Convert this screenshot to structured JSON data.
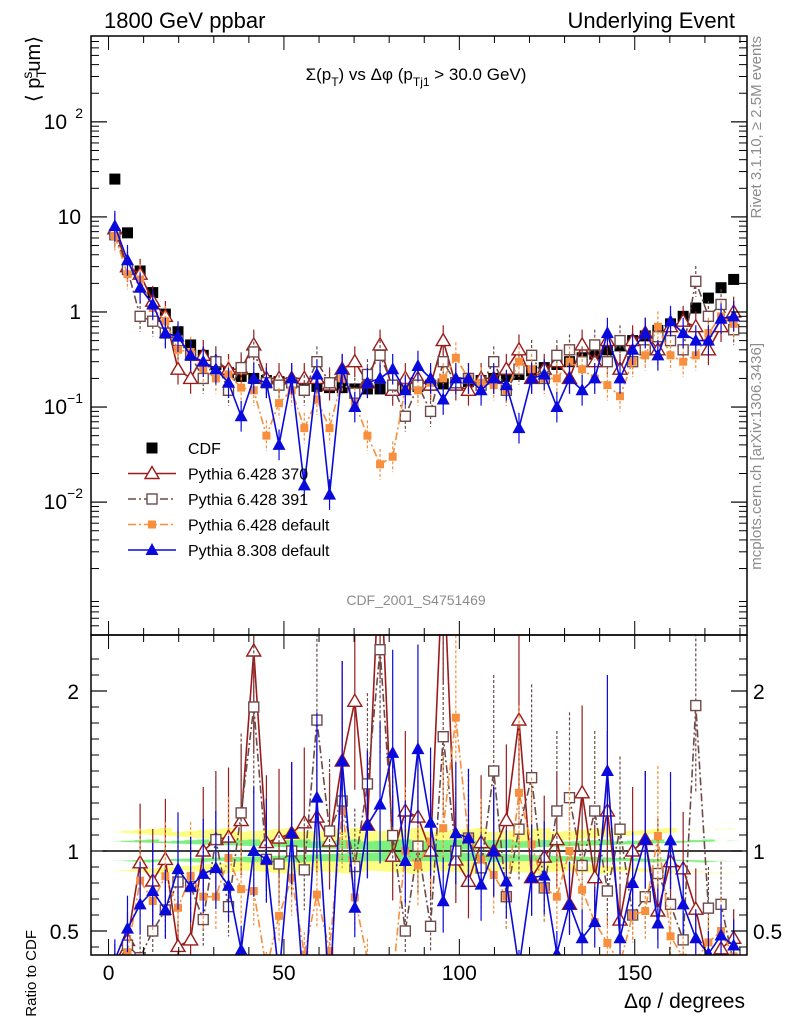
{
  "header": {
    "left": "1800 GeV ppbar",
    "right": "Underlying Event"
  },
  "side_labels": {
    "rivet": "Rivet 3.1.10, ≥ 2.5M events",
    "mcplots": "mcplots.cern.ch [arXiv:1306.3436]"
  },
  "watermark": "CDF_2001_S4751469",
  "chart_data": [
    {
      "type": "scatter",
      "title": "Σ(p_T) vs Δφ (p_Tj1 > 30.0 GeV)",
      "title_parts": {
        "sigma": "Σ(p",
        "sub_t": "T",
        "mid": ") vs Δφ (p",
        "sub_tj1": "Tj1",
        "tail": " > 30.0 GeV)"
      },
      "ylabel": "⟨ p_T^sum⟩",
      "ylabel_parts": {
        "open": "⟨ p",
        "sup": "s",
        "sub": "T",
        "tail": "um⟩"
      },
      "y_scale": "log",
      "ylim": [
        0.0004,
        800
      ],
      "xlim": [
        -5,
        182
      ],
      "y_ticks": [
        {
          "value": 0.01,
          "base": "10",
          "exp": "−2"
        },
        {
          "value": 0.1,
          "base": "10",
          "exp": "−1"
        },
        {
          "value": 1,
          "base": "1",
          "exp": ""
        },
        {
          "value": 10,
          "base": "10",
          "exp": ""
        },
        {
          "value": 100,
          "base": "10",
          "exp": "2"
        }
      ],
      "legend_position": "lower-left",
      "x": [
        1.8,
        5.4,
        9,
        12.6,
        16.2,
        19.8,
        23.4,
        27,
        30.6,
        34.2,
        37.8,
        41.4,
        45,
        48.6,
        52.2,
        55.8,
        59.4,
        63,
        66.6,
        70.2,
        73.8,
        77.4,
        81,
        84.6,
        88.2,
        91.8,
        95.4,
        99,
        102.6,
        106.2,
        109.8,
        113.4,
        117,
        120.6,
        124.2,
        127.8,
        131.4,
        135,
        138.6,
        142.2,
        145.8,
        149.4,
        153,
        156.6,
        160.2,
        163.8,
        167.4,
        171,
        174.6,
        178.2
      ],
      "series": [
        {
          "name": "CDF",
          "marker": "filled-square",
          "color": "#000000",
          "line": "none",
          "values": [
            25,
            6.8,
            2.7,
            1.6,
            0.95,
            0.62,
            0.45,
            0.35,
            0.28,
            0.23,
            0.21,
            0.2,
            0.19,
            0.185,
            0.18,
            0.17,
            0.165,
            0.16,
            0.16,
            0.155,
            0.155,
            0.155,
            0.155,
            0.16,
            0.165,
            0.17,
            0.175,
            0.18,
            0.185,
            0.19,
            0.2,
            0.21,
            0.22,
            0.24,
            0.26,
            0.28,
            0.3,
            0.33,
            0.36,
            0.4,
            0.44,
            0.5,
            0.56,
            0.64,
            0.75,
            0.9,
            1.1,
            1.4,
            1.8,
            2.2
          ]
        },
        {
          "name": "Pythia 6.428 370",
          "marker": "open-triangle",
          "color": "#9a1b1b",
          "line": "solid",
          "values": [
            7.5,
            3,
            2.5,
            1.3,
            0.9,
            0.25,
            0.2,
            0.35,
            0.3,
            0.25,
            0.25,
            0.45,
            0.2,
            0.2,
            0.2,
            0.2,
            0.2,
            0.17,
            0.25,
            0.3,
            0.18,
            0.45,
            0.15,
            0.2,
            0.2,
            0.17,
            0.5,
            0.17,
            0.15,
            0.2,
            0.2,
            0.25,
            0.4,
            0.2,
            0.25,
            0.3,
            0.2,
            0.45,
            0.3,
            0.5,
            0.25,
            0.5,
            0.6,
            0.4,
            0.7,
            0.8,
            0.7,
            0.4,
            0.7,
            1
          ]
        },
        {
          "name": "Pythia 6.428 391",
          "marker": "open-square",
          "color": "#6e4a4a",
          "line": "dash-dot",
          "values": [
            6.5,
            2.8,
            0.9,
            0.8,
            0.6,
            0.5,
            0.35,
            0.2,
            0.3,
            0.15,
            0.26,
            0.38,
            0.18,
            0.17,
            0.18,
            0.15,
            0.3,
            0.18,
            0.21,
            0.14,
            0.22,
            0.35,
            0.17,
            0.08,
            0.17,
            0.09,
            0.3,
            0.18,
            0.2,
            0.17,
            0.3,
            0.15,
            0.25,
            0.35,
            0.2,
            0.35,
            0.4,
            0.3,
            0.45,
            0.3,
            0.5,
            0.3,
            0.4,
            0.55,
            0.5,
            0.4,
            2.1,
            0.9,
            1.2,
            0.65
          ]
        },
        {
          "name": "Pythia 6.428 default",
          "marker": "filled-square-small",
          "color": "#f78f3c",
          "line": "dash-dot",
          "values": [
            6.3,
            2.5,
            2.2,
            1.1,
            0.8,
            0.4,
            0.38,
            0.25,
            0.2,
            0.22,
            0.16,
            0.15,
            0.05,
            0.11,
            0.15,
            0.06,
            0.12,
            0.06,
            0.2,
            0.11,
            0.05,
            0.025,
            0.03,
            0.16,
            0.15,
            0.18,
            0.2,
            0.33,
            0.2,
            0.18,
            0.17,
            0.15,
            0.3,
            0.25,
            0.2,
            0.2,
            0.3,
            0.25,
            0.2,
            0.17,
            0.13,
            0.3,
            0.35,
            0.7,
            0.35,
            0.3,
            0.35,
            0.6,
            0.9,
            0.75
          ]
        },
        {
          "name": "Pythia 8.308 default",
          "marker": "filled-triangle",
          "color": "#0a0adc",
          "line": "solid",
          "values": [
            8,
            3.5,
            1.8,
            1.2,
            0.6,
            0.55,
            0.35,
            0.3,
            0.25,
            0.18,
            0.08,
            0.2,
            0.18,
            0.04,
            0.2,
            0.015,
            0.22,
            0.012,
            0.25,
            0.1,
            0.18,
            0.2,
            0.25,
            0.15,
            0.27,
            0.2,
            0.12,
            0.2,
            0.2,
            0.15,
            0.2,
            0.17,
            0.06,
            0.2,
            0.22,
            0.1,
            0.2,
            0.15,
            0.2,
            0.6,
            0.2,
            0.4,
            0.6,
            0.35,
            0.8,
            0.6,
            0.5,
            0.5,
            0.85,
            0.9
          ]
        }
      ]
    },
    {
      "type": "scatter",
      "ylabel": "Ratio to CDF",
      "xlabel": "Δφ / degrees",
      "ylim": [
        0.35,
        2.35
      ],
      "xlim": [
        -5,
        182
      ],
      "y_ticks": [
        0.5,
        1,
        2
      ],
      "x_ticks": [
        0,
        50,
        100,
        150
      ],
      "bands": {
        "inner_color": "#7ef07e",
        "outer_color": "#fdfd84"
      },
      "series_ratio": "each MC series divided by CDF"
    }
  ]
}
